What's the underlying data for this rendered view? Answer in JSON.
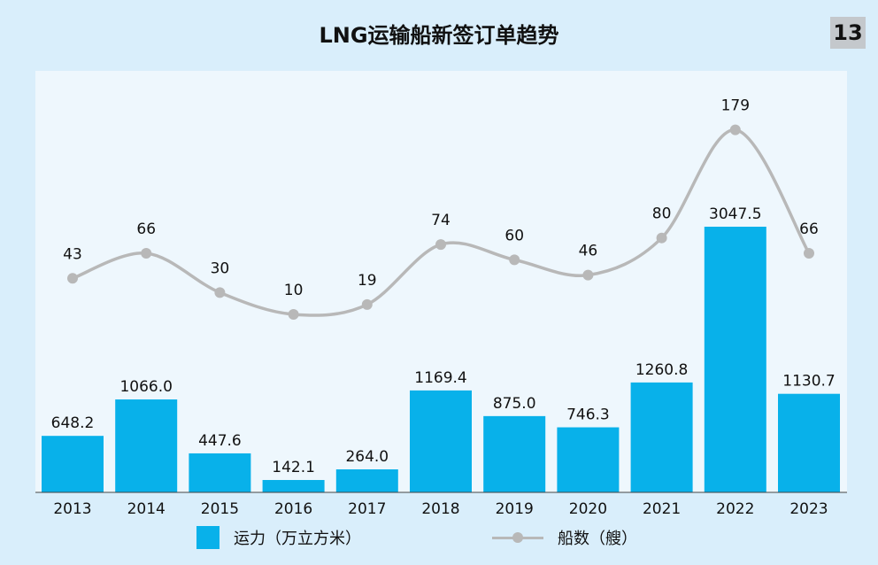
{
  "page": {
    "badge": "13"
  },
  "legend": {
    "bar_label": "运力（万立方米）",
    "line_label": "船数（艘）"
  },
  "colors": {
    "bar": "#08b1ea",
    "line": "#b8b8b8",
    "background": "#d9eefb",
    "panel": "#eef7fd"
  },
  "chart_data": {
    "type": "bar",
    "title": "LNG运输船新签订单趋势",
    "categories": [
      "2013",
      "2014",
      "2015",
      "2016",
      "2017",
      "2018",
      "2019",
      "2020",
      "2021",
      "2022",
      "2023"
    ],
    "series": [
      {
        "name": "运力（万立方米）",
        "type": "bar",
        "values": [
          648.2,
          1066.0,
          447.6,
          142.1,
          264.0,
          1169.4,
          875.0,
          746.3,
          1260.8,
          3047.5,
          1130.7
        ],
        "labels": [
          "648.2",
          "1066.0",
          "447.6",
          "142.1",
          "264.0",
          "1169.4",
          "875.0",
          "746.3",
          "1260.8",
          "3047.5",
          "1130.7"
        ]
      },
      {
        "name": "船数（艘）",
        "type": "line",
        "smooth": true,
        "values": [
          43,
          66,
          30,
          10,
          19,
          74,
          60,
          46,
          80,
          179,
          66
        ],
        "labels": [
          "43",
          "66",
          "30",
          "10",
          "19",
          "74",
          "60",
          "46",
          "80",
          "179",
          "66"
        ]
      }
    ],
    "xlabel": "",
    "ylabel": "",
    "ylim_bar": [
      0,
      3300
    ],
    "ylim_line": [
      0,
      180
    ],
    "grid": false,
    "legend_position": "bottom"
  }
}
